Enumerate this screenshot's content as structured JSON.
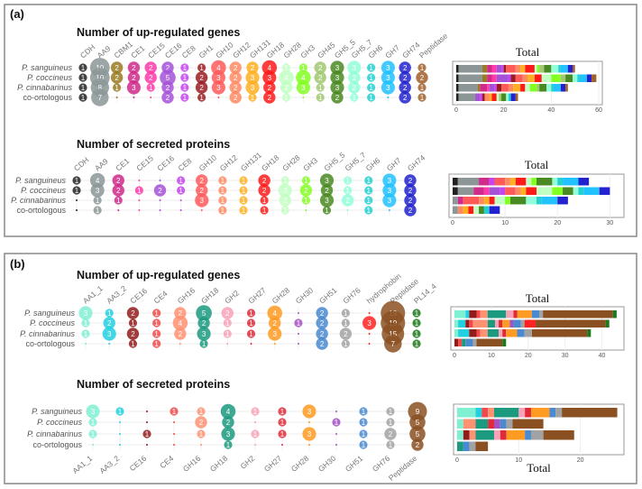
{
  "panels": [
    {
      "label": "(a)"
    },
    {
      "label": "(b)"
    }
  ],
  "rows": [
    "P. sanguineus",
    "P. coccineus",
    "P. cinnabarinus",
    "co-ortologous"
  ],
  "chart_data": [
    {
      "type": "dot-matrix",
      "panel": "(a)",
      "title": "Number of up-regulated genes",
      "total_title": "Total",
      "total_axis": [
        0,
        60
      ],
      "total_ticks": [
        0,
        20,
        40,
        60
      ],
      "categories": [
        "CDH",
        "AA9",
        "CBM1",
        "CE1",
        "CE15",
        "CE16",
        "CE8",
        "GH1",
        "GH10",
        "GH12",
        "GH131",
        "GH18",
        "GH28",
        "GH3",
        "GH45",
        "GH5_5",
        "GH5_7",
        "GH6",
        "GH7",
        "GH74",
        "Peptidase"
      ],
      "colors": [
        "#222222",
        "#8c9696",
        "#9a7a22",
        "#d02a8a",
        "#ff3aa8",
        "#a452d8",
        "#c444f0",
        "#9a1c22",
        "#ff5a5a",
        "#ff8a62",
        "#ffb022",
        "#ff1a1a",
        "#c2ffc2",
        "#84ff22",
        "#a2c872",
        "#4a8a22",
        "#92ffd8",
        "#22d0d0",
        "#22c2ff",
        "#2222d0",
        "#a0602a"
      ],
      "values": [
        [
          1,
          10,
          2,
          2,
          2,
          2,
          1,
          1,
          4,
          2,
          2,
          4,
          1,
          1,
          2,
          3,
          3,
          1,
          3,
          2,
          1
        ],
        [
          1,
          10,
          2,
          2,
          2,
          5,
          1,
          2,
          3,
          2,
          3,
          3,
          4,
          4,
          2,
          3,
          2,
          1,
          3,
          2,
          2
        ],
        [
          1,
          8,
          1,
          3,
          1,
          2,
          1,
          2,
          3,
          2,
          3,
          2,
          2,
          3,
          1,
          3,
          2,
          1,
          3,
          2,
          1
        ],
        [
          1,
          7,
          0,
          0,
          0,
          2,
          1,
          1,
          0,
          2,
          1,
          2,
          1,
          0,
          1,
          2,
          1,
          1,
          0,
          2,
          1
        ]
      ]
    },
    {
      "type": "dot-matrix",
      "panel": "(a)",
      "title": "Number of secreted proteins",
      "total_title": "Total",
      "total_axis": [
        0,
        32
      ],
      "total_ticks": [
        0,
        10,
        20,
        30
      ],
      "categories": [
        "CDH",
        "AA9",
        "CE1",
        "CE15",
        "CE16",
        "CE8",
        "GH10",
        "GH12",
        "GH131",
        "GH18",
        "GH28",
        "GH3",
        "GH5_5",
        "GH5_7",
        "GH6",
        "GH7",
        "GH74"
      ],
      "colors": [
        "#222222",
        "#8c9696",
        "#d02a8a",
        "#ff3aa8",
        "#a452d8",
        "#c444f0",
        "#ff5a5a",
        "#ff8a62",
        "#ffb022",
        "#ff1a1a",
        "#c2ffc2",
        "#84ff22",
        "#4a8a22",
        "#92ffd8",
        "#22d0d0",
        "#22c2ff",
        "#2222d0"
      ],
      "values": [
        [
          1,
          4,
          2,
          0,
          0,
          1,
          2,
          1,
          1,
          2,
          1,
          1,
          3,
          1,
          1,
          3,
          2
        ],
        [
          1,
          3,
          2,
          1,
          2,
          1,
          2,
          1,
          1,
          2,
          3,
          2,
          2,
          1,
          1,
          3,
          2
        ],
        [
          0,
          1,
          1,
          0,
          0,
          0,
          3,
          1,
          1,
          1,
          2,
          1,
          3,
          2,
          1,
          3,
          2
        ],
        [
          0,
          1,
          0,
          0,
          0,
          0,
          0,
          1,
          1,
          1,
          1,
          0,
          1,
          0,
          1,
          0,
          2
        ]
      ]
    },
    {
      "type": "dot-matrix",
      "panel": "(b)",
      "title": "Number of up-regulated genes",
      "total_title": "Total",
      "total_axis": [
        0,
        45
      ],
      "total_ticks": [
        0,
        10,
        20,
        30,
        40
      ],
      "categories": [
        "AA1_1",
        "AA3_2",
        "CE16",
        "CE4",
        "GH16",
        "GH18",
        "GH2",
        "GH27",
        "GH28",
        "GH30",
        "GH51",
        "GH76",
        "hydrophobin",
        "Peptidase",
        "PL14_4"
      ],
      "colors": [
        "#80f0d2",
        "#22d0e0",
        "#921c1c",
        "#f04a4a",
        "#ff9272",
        "#1c9a80",
        "#f8a2b8",
        "#e02a3a",
        "#ff9a22",
        "#a452c2",
        "#4a8ad0",
        "#a2a2a2",
        "#ff2222",
        "#8b5022",
        "#1c7a1c"
      ],
      "values": [
        [
          3,
          1,
          2,
          1,
          2,
          5,
          2,
          1,
          4,
          0,
          2,
          1,
          0,
          19,
          1
        ],
        [
          1,
          2,
          1,
          1,
          4,
          2,
          1,
          1,
          2,
          1,
          2,
          1,
          3,
          19,
          1
        ],
        [
          1,
          3,
          2,
          1,
          2,
          3,
          1,
          1,
          3,
          0,
          2,
          2,
          0,
          15,
          1
        ],
        [
          0,
          0,
          1,
          1,
          0,
          1,
          0,
          0,
          0,
          0,
          2,
          1,
          0,
          7,
          1
        ]
      ]
    },
    {
      "type": "dot-matrix",
      "panel": "(b)",
      "title": "Number of secreted proteins",
      "total_title": "Total",
      "total_axis": [
        0,
        26.5
      ],
      "total_ticks": [
        0,
        10,
        20
      ],
      "categories": [
        "AA1_1",
        "AA3_2",
        "CE16",
        "CE4",
        "GH16",
        "GH18",
        "GH2",
        "GH27",
        "GH28",
        "GH30",
        "GH51",
        "GH76",
        "Peptidase"
      ],
      "colors": [
        "#80f0d2",
        "#22d0e0",
        "#921c1c",
        "#f04a4a",
        "#ff9272",
        "#1c9a80",
        "#f8a2b8",
        "#e02a3a",
        "#ff9a22",
        "#a452c2",
        "#4a8ad0",
        "#a2a2a2",
        "#8b5022"
      ],
      "values": [
        [
          3,
          1,
          0,
          1,
          1,
          4,
          1,
          1,
          3,
          0,
          1,
          1,
          9
        ],
        [
          1,
          0,
          0,
          0,
          2,
          2,
          0,
          1,
          0,
          1,
          1,
          1,
          5
        ],
        [
          1,
          0,
          1,
          0,
          1,
          3,
          1,
          1,
          3,
          0,
          1,
          2,
          5
        ],
        [
          0,
          0,
          0,
          0,
          0,
          1,
          0,
          0,
          0,
          0,
          1,
          1,
          2
        ]
      ]
    }
  ]
}
